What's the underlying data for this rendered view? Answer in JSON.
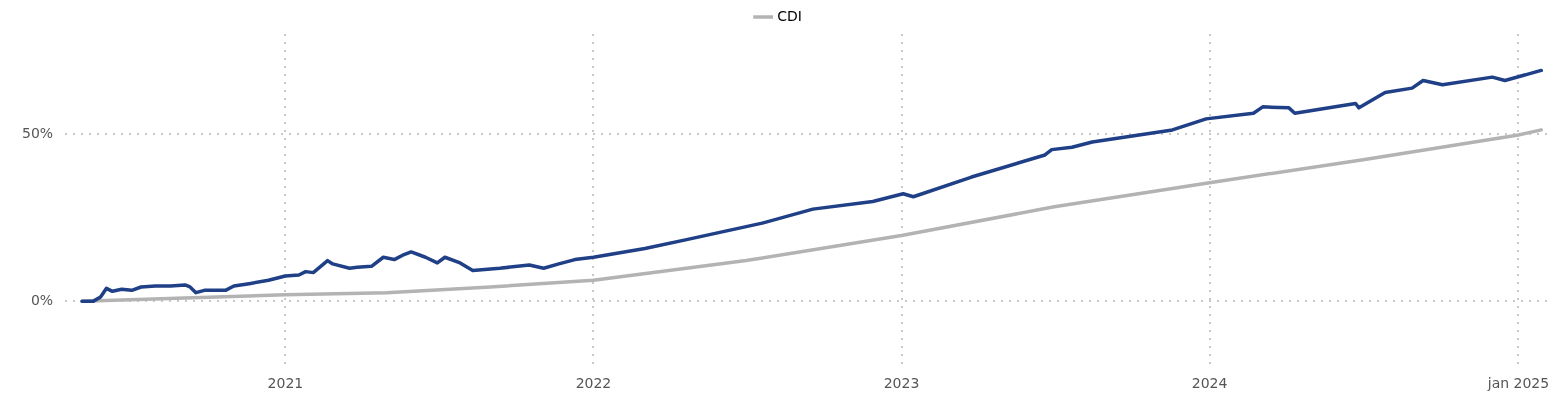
{
  "chart_data": {
    "type": "line",
    "xlim": [
      "2020-04-15",
      "2025-02-05"
    ],
    "xticks": [
      {
        "value": "2021-01-01",
        "label": "2021"
      },
      {
        "value": "2022-01-01",
        "label": "2022"
      },
      {
        "value": "2023-01-01",
        "label": "2023"
      },
      {
        "value": "2024-01-01",
        "label": "2024"
      },
      {
        "value": "2025-01-01",
        "label": "jan 2025"
      }
    ],
    "ylim": [
      -20,
      80
    ],
    "yticks": [
      {
        "value": 0,
        "label": "0%"
      },
      {
        "value": 50,
        "label": "50%"
      }
    ],
    "grid": true,
    "legend": "top",
    "marker": "none",
    "line_style": "solid",
    "series": [
      {
        "color": "#1f3f86",
        "x": [
          "2020-05-05",
          "2020-05-18",
          "2020-05-27",
          "2020-06-03",
          "2020-06-10",
          "2020-06-21",
          "2020-07-03",
          "2020-07-14",
          "2020-07-31",
          "2020-08-18",
          "2020-09-04",
          "2020-09-10",
          "2020-09-17",
          "2020-09-27",
          "2020-10-22",
          "2020-11-01",
          "2020-11-19",
          "2020-12-12",
          "2021-01-01",
          "2021-01-17",
          "2021-01-25",
          "2021-02-03",
          "2021-02-20",
          "2021-02-26",
          "2021-03-18",
          "2021-03-27",
          "2021-04-13",
          "2021-04-27",
          "2021-05-10",
          "2021-05-20",
          "2021-05-30",
          "2021-06-16",
          "2021-06-30",
          "2021-07-09",
          "2021-07-27",
          "2021-08-11",
          "2021-09-12",
          "2021-10-17",
          "2021-11-03",
          "2021-11-21",
          "2021-12-10",
          "2022-01-01",
          "2022-03-03",
          "2022-04-20",
          "2022-07-20",
          "2022-09-18",
          "2022-11-28",
          "2023-01-03",
          "2023-01-15",
          "2023-03-25",
          "2023-06-20",
          "2023-06-28",
          "2023-07-22",
          "2023-08-15",
          "2023-11-18",
          "2023-12-28",
          "2024-02-22",
          "2024-03-04",
          "2024-04-04",
          "2024-04-11",
          "2024-06-22",
          "2024-06-26",
          "2024-07-27",
          "2024-08-28",
          "2024-09-10",
          "2024-10-03",
          "2024-12-01",
          "2024-12-16",
          "2025-01-28"
        ],
        "values": [
          0,
          0,
          1.3,
          3.9,
          3,
          3.6,
          3.3,
          4.3,
          4.6,
          4.6,
          4.9,
          4.3,
          2.6,
          3.3,
          3.3,
          4.6,
          5.3,
          6.3,
          7.6,
          7.9,
          8.9,
          8.6,
          12.2,
          11.2,
          9.9,
          10.2,
          10.5,
          13.2,
          12.5,
          13.8,
          14.8,
          13.2,
          11.5,
          13.2,
          11.5,
          9.2,
          9.9,
          10.9,
          9.9,
          11.2,
          12.5,
          13.2,
          15.8,
          18.4,
          23.4,
          27.6,
          29.9,
          32.2,
          31.3,
          37.2,
          43.8,
          45.4,
          46.1,
          47.7,
          51.3,
          54.6,
          56.3,
          58.2,
          57.9,
          56.3,
          59.2,
          57.9,
          62.5,
          63.8,
          66.1,
          64.8,
          67.1,
          66.1,
          69.1
        ]
      },
      {
        "name": "CDI",
        "color": "#b3b3b3",
        "x": [
          "2020-05-05",
          "2021-01-01",
          "2021-05-01",
          "2021-09-01",
          "2022-01-01",
          "2022-07-01",
          "2023-01-01",
          "2023-07-01",
          "2024-01-01",
          "2024-07-01",
          "2025-01-01",
          "2025-01-28"
        ],
        "values": [
          0,
          2.0,
          2.6,
          4.3,
          6.3,
          12.2,
          19.7,
          28.3,
          35.5,
          42.4,
          49.8,
          51.3
        ]
      }
    ]
  }
}
